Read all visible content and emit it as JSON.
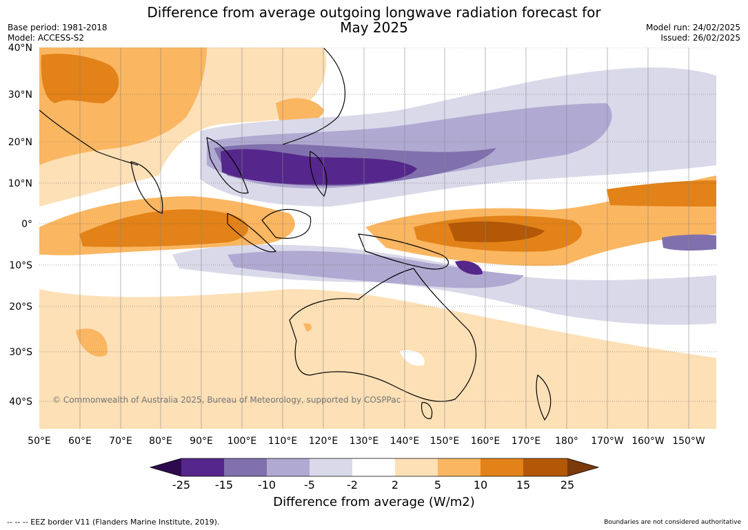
{
  "title_line1": "Difference from average outgoing longwave radiation forecast for",
  "title_line2": "May 2025",
  "base_period": "Base period: 1981-2018",
  "model": "Model: ACCESS-S2",
  "model_run": "Model run: 24/02/2025",
  "issued": "Issued: 26/02/2025",
  "copyright": "© Commonwealth of Australia 2025, Bureau of Meteorology, supported by COSPPac",
  "eez_note": "--  --  -- EEZ border V11 (Flanders Marine Institute, 2019).",
  "boundaries_note": "Boundaries are not considered authoritative",
  "map": {
    "lon_range": [
      50,
      217
    ],
    "lat_range": [
      -47,
      40
    ],
    "lat_labels": [
      "40°N",
      "30°N",
      "20°N",
      "10°N",
      "0°",
      "10°S",
      "20°S",
      "30°S",
      "40°S"
    ],
    "lon_labels": [
      "50°E",
      "60°E",
      "70°E",
      "80°E",
      "90°E",
      "100°E",
      "110°E",
      "120°E",
      "130°E",
      "140°E",
      "150°E",
      "160°E",
      "170°E",
      "180°",
      "170°W",
      "160°W",
      "150°W"
    ]
  },
  "colorbar": {
    "title": "Difference from average (W/m2)",
    "tick_labels": [
      "-25",
      "-15",
      "-10",
      "-5",
      "-2",
      "2",
      "5",
      "10",
      "15",
      "25"
    ],
    "colors": {
      "lt_-25": "#2d0a4e",
      "-25_-15": "#55268b",
      "-15_-10": "#8070ad",
      "-10_-5": "#b0a9d1",
      "-5_-2": "#d9d9ea",
      "-2_2": "#ffffff",
      "2_5": "#fde0b6",
      "5_10": "#fbb661",
      "10_15": "#e28218",
      "15_25": "#b35806",
      "gt_25": "#7a3a0a"
    }
  }
}
